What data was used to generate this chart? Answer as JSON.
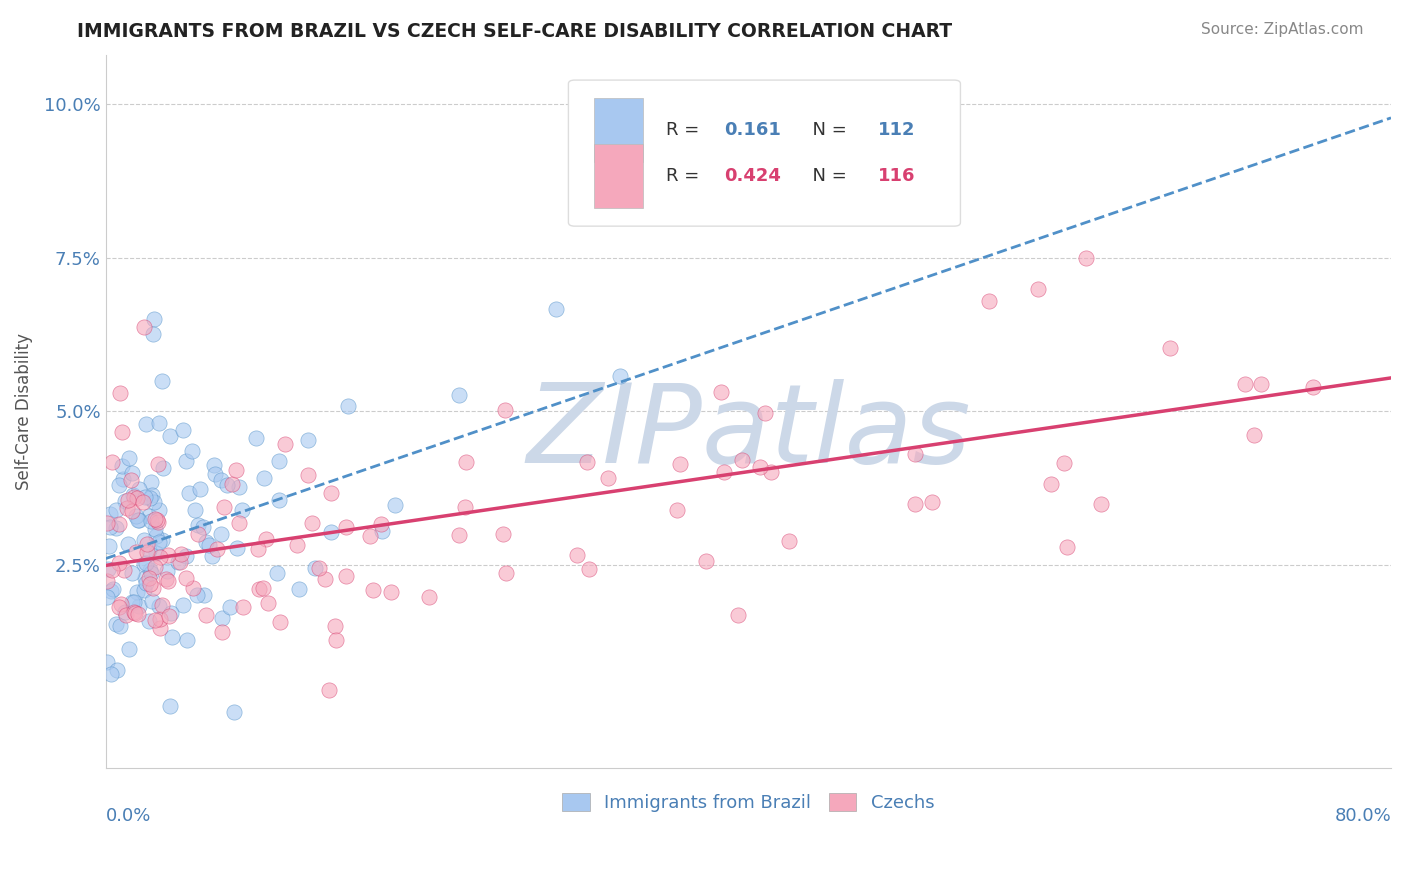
{
  "title": "IMMIGRANTS FROM BRAZIL VS CZECH SELF-CARE DISABILITY CORRELATION CHART",
  "source": "Source: ZipAtlas.com",
  "ylabel": "Self-Care Disability",
  "xlim": [
    0.0,
    0.8
  ],
  "ylim": [
    -0.008,
    0.108
  ],
  "R_brazil": 0.161,
  "N_brazil": 112,
  "R_czech": 0.424,
  "N_czech": 116,
  "color_brazil": "#a8c8f0",
  "color_czech": "#f5a8bc",
  "color_brazil_line": "#5090c8",
  "color_czech_line": "#d84070",
  "color_title": "#222222",
  "color_axis_label": "#4a7fb5",
  "color_source": "#888888",
  "color_watermark": "#ccd8e8",
  "watermark_text": "ZIPatlas",
  "legend_R_color": "#4a7fb5",
  "legend_N_color": "#4a7fb5",
  "legend_text_color": "#333333"
}
